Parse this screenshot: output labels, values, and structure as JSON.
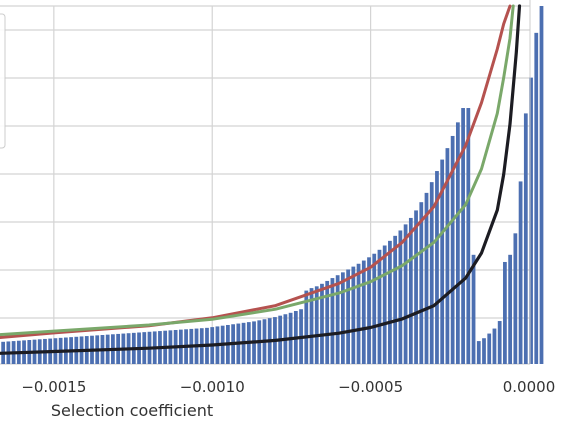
{
  "chart_data": {
    "type": "bar",
    "title": "",
    "xlabel": "Selection coefficient",
    "ylabel": "",
    "xlim": [
      -0.00167,
      0.0
    ],
    "ylim": [
      0,
      100
    ],
    "grid": true,
    "xticks": [
      {
        "value": -0.0015,
        "label": "−0.0015"
      },
      {
        "value": -0.001,
        "label": "−0.0010"
      },
      {
        "value": -0.0005,
        "label": "−0.0005"
      },
      {
        "value": 0.0,
        "label": "0.0000"
      }
    ],
    "histogram": {
      "color": "#4c6fb1",
      "bin_start": -0.001666,
      "bin_width": 1.65e-05,
      "values": [
        6.2,
        6.3,
        6.4,
        6.5,
        6.6,
        6.7,
        6.8,
        6.9,
        7.0,
        7.1,
        7.2,
        7.3,
        7.4,
        7.5,
        7.6,
        7.7,
        7.8,
        7.9,
        8.0,
        8.1,
        8.2,
        8.3,
        8.4,
        8.5,
        8.6,
        8.7,
        8.8,
        8.9,
        9.0,
        9.1,
        9.2,
        9.3,
        9.4,
        9.5,
        9.6,
        9.7,
        9.8,
        9.9,
        10.0,
        10.1,
        10.3,
        10.5,
        10.7,
        10.9,
        11.1,
        11.3,
        11.5,
        11.7,
        11.9,
        12.2,
        12.5,
        12.8,
        13.1,
        13.5,
        13.9,
        14.3,
        14.8,
        15.3,
        20.5,
        21.2,
        21.7,
        22.4,
        23.2,
        24.0,
        24.8,
        25.6,
        26.4,
        27.2,
        28.0,
        28.9,
        29.8,
        30.8,
        31.9,
        33.1,
        34.4,
        35.8,
        37.3,
        39.0,
        40.8,
        42.9,
        45.2,
        47.8,
        50.8,
        53.9,
        57.1,
        60.3,
        63.7,
        67.5,
        71.5,
        71.5,
        30.5,
        6.4,
        7.2,
        8.5,
        9.9,
        12.0,
        28.5,
        30.5,
        36.5,
        51.0,
        70.0,
        80.0,
        92.5,
        100
      ]
    },
    "series": [
      {
        "color": "#b5524f",
        "points": [
          [
            -0.00167,
            7.4
          ],
          [
            -0.0015,
            8.7
          ],
          [
            -0.0012,
            10.7
          ],
          [
            -0.001,
            12.9
          ],
          [
            -0.0008,
            16.3
          ],
          [
            -0.0006,
            22.5
          ],
          [
            -0.0005,
            27.0
          ],
          [
            -0.0004,
            34.0
          ],
          [
            -0.0003,
            44.0
          ],
          [
            -0.0002,
            61.0
          ],
          [
            -0.00015,
            73.0
          ],
          [
            -0.0001,
            88.0
          ],
          [
            -8e-05,
            95.0
          ],
          [
            -6e-05,
            100.0
          ]
        ]
      },
      {
        "color": "#7aa86a",
        "points": [
          [
            -0.00167,
            8.2
          ],
          [
            -0.0015,
            9.2
          ],
          [
            -0.0012,
            10.9
          ],
          [
            -0.001,
            12.5
          ],
          [
            -0.0008,
            15.3
          ],
          [
            -0.0006,
            19.8
          ],
          [
            -0.0005,
            23.0
          ],
          [
            -0.0004,
            27.5
          ],
          [
            -0.0003,
            34.0
          ],
          [
            -0.0002,
            44.5
          ],
          [
            -0.00015,
            54.5
          ],
          [
            -0.0001,
            70.0
          ],
          [
            -8e-05,
            80.0
          ],
          [
            -6e-05,
            91.0
          ],
          [
            -5e-05,
            100.0
          ]
        ]
      },
      {
        "color": "#1c1c22",
        "points": [
          [
            -0.00167,
            3.0
          ],
          [
            -0.0015,
            3.5
          ],
          [
            -0.0012,
            4.4
          ],
          [
            -0.001,
            5.3
          ],
          [
            -0.0008,
            6.6
          ],
          [
            -0.0006,
            8.6
          ],
          [
            -0.0005,
            10.2
          ],
          [
            -0.0004,
            12.6
          ],
          [
            -0.0003,
            16.3
          ],
          [
            -0.0002,
            24.0
          ],
          [
            -0.00015,
            31.0
          ],
          [
            -0.0001,
            43.0
          ],
          [
            -8e-05,
            53.0
          ],
          [
            -6e-05,
            67.0
          ],
          [
            -4e-05,
            87.0
          ],
          [
            -3e-05,
            100.0
          ]
        ]
      }
    ],
    "legend": {
      "placement": "upper-left",
      "entries": []
    }
  }
}
